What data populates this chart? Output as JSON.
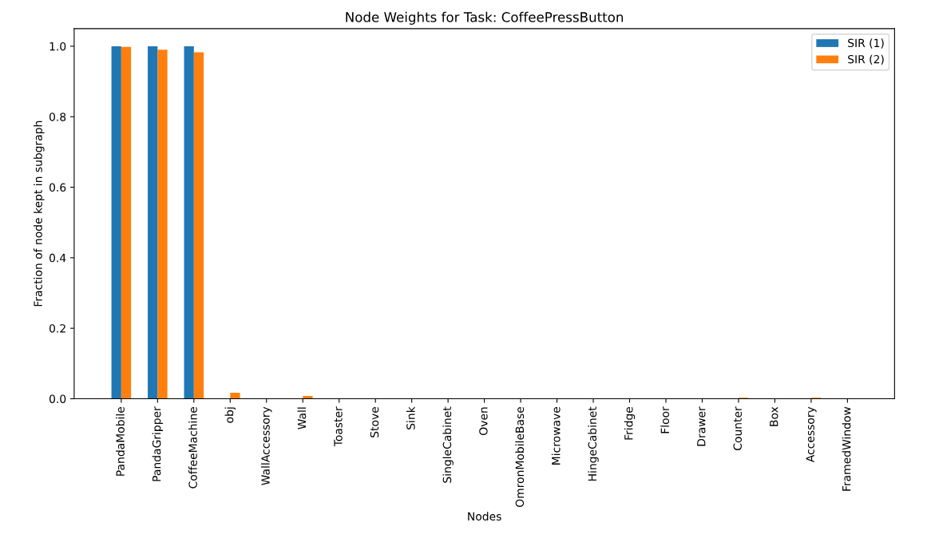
{
  "chart_data": {
    "type": "bar",
    "title": "Node Weights for Task: CoffeePressButton",
    "xlabel": "Nodes",
    "ylabel": "Fraction of node kept in subgraph",
    "categories": [
      "PandaMobile",
      "PandaGripper",
      "CoffeeMachine",
      "obj",
      "WallAccessory",
      "Wall",
      "Toaster",
      "Stove",
      "Sink",
      "SingleCabinet",
      "Oven",
      "OmronMobileBase",
      "Microwave",
      "HingeCabinet",
      "Fridge",
      "Floor",
      "Drawer",
      "Counter",
      "Box",
      "Accessory",
      "FramedWindow"
    ],
    "series": [
      {
        "name": "SIR (1)",
        "color": "#1f77b4",
        "values": [
          1.0,
          1.0,
          1.0,
          0,
          0,
          0,
          0,
          0,
          0,
          0,
          0,
          0,
          0,
          0,
          0,
          0,
          0,
          0,
          0,
          0,
          0
        ]
      },
      {
        "name": "SIR (2)",
        "color": "#ff7f0e",
        "values": [
          0.998,
          0.99,
          0.983,
          0.017,
          0,
          0.008,
          0,
          0,
          0,
          0,
          0,
          0,
          0,
          0,
          0,
          0,
          0,
          0.003,
          0,
          0.003,
          0
        ]
      }
    ],
    "ylim": [
      0,
      1.05
    ],
    "yticks": [
      {
        "value": 0,
        "label": "0.0"
      },
      0.2,
      0.4,
      0.6,
      0.8,
      {
        "value": 1,
        "label": "1.0"
      }
    ],
    "legend": "top right",
    "grid": false
  }
}
